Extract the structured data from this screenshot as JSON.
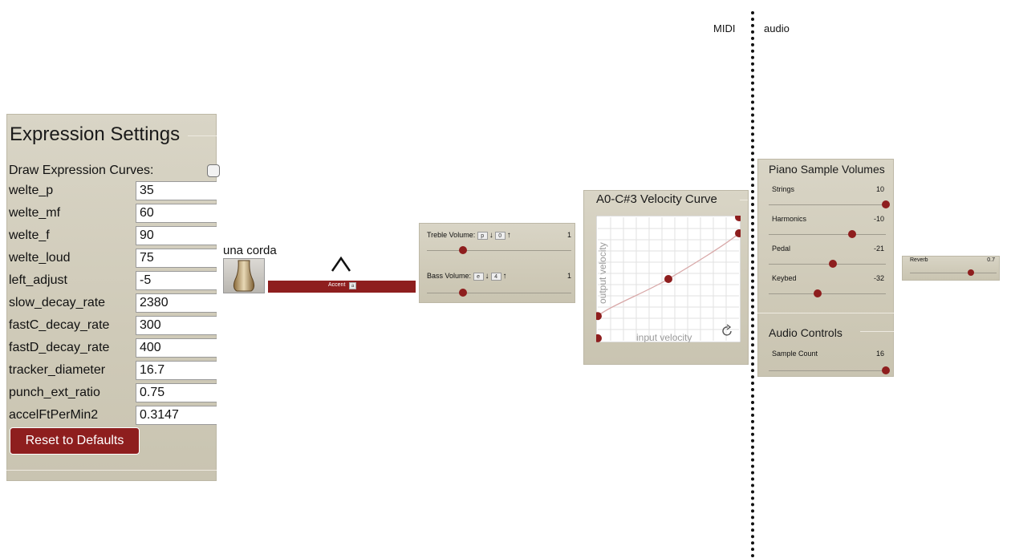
{
  "expression": {
    "title": "Expression Settings",
    "draw_curves_label": "Draw Expression Curves:",
    "rows": [
      {
        "label": "welte_p",
        "value": "35"
      },
      {
        "label": "welte_mf",
        "value": "60"
      },
      {
        "label": "welte_f",
        "value": "90"
      },
      {
        "label": "welte_loud",
        "value": "75"
      },
      {
        "label": "left_adjust",
        "value": "-5"
      },
      {
        "label": "slow_decay_rate",
        "value": "2380"
      },
      {
        "label": "fastC_decay_rate",
        "value": "300"
      },
      {
        "label": "fastD_decay_rate",
        "value": "400"
      },
      {
        "label": "tracker_diameter",
        "value": "16.7"
      },
      {
        "label": "punch_ext_ratio",
        "value": "0.75"
      },
      {
        "label": "accelFtPerMin2",
        "value": "0.3147"
      }
    ],
    "reset_label": "Reset to Defaults"
  },
  "una_corda": {
    "label": "una corda"
  },
  "accent": {
    "label": "Accent",
    "key": "a"
  },
  "volumes": {
    "treble": {
      "label": "Treble Volume:",
      "key1": "p",
      "key2": "0",
      "value": "1",
      "fraction": 0.25
    },
    "bass": {
      "label": "Bass Volume:",
      "key1": "e",
      "key2": "4",
      "value": "1",
      "fraction": 0.25
    }
  },
  "velocity_curve": {
    "title": "A0-C#3 Velocity Curve",
    "xlabel": "input velocity",
    "ylabel": "output velocity",
    "control_points": [
      [
        0,
        2
      ],
      [
        0,
        20
      ],
      [
        50,
        50
      ],
      [
        100,
        87
      ],
      [
        100,
        100
      ]
    ]
  },
  "divider": {
    "left": "MIDI",
    "right": "audio"
  },
  "piano_sample_volumes": {
    "title": "Piano Sample Volumes",
    "sliders": [
      {
        "label": "Strings",
        "value": "10",
        "fraction": 1.0
      },
      {
        "label": "Harmonics",
        "value": "-10",
        "fraction": 0.71
      },
      {
        "label": "Pedal",
        "value": "-21",
        "fraction": 0.55
      },
      {
        "label": "Keybed",
        "value": "-32",
        "fraction": 0.42
      }
    ]
  },
  "audio_controls": {
    "title": "Audio Controls",
    "slider": {
      "label": "Sample Count",
      "value": "16",
      "fraction": 1.0
    }
  },
  "reverb": {
    "label": "Reverb",
    "value": "0.7",
    "fraction": 0.7
  },
  "colors": {
    "accent": "#8e1e1e",
    "panel": "#d4cfbe"
  }
}
